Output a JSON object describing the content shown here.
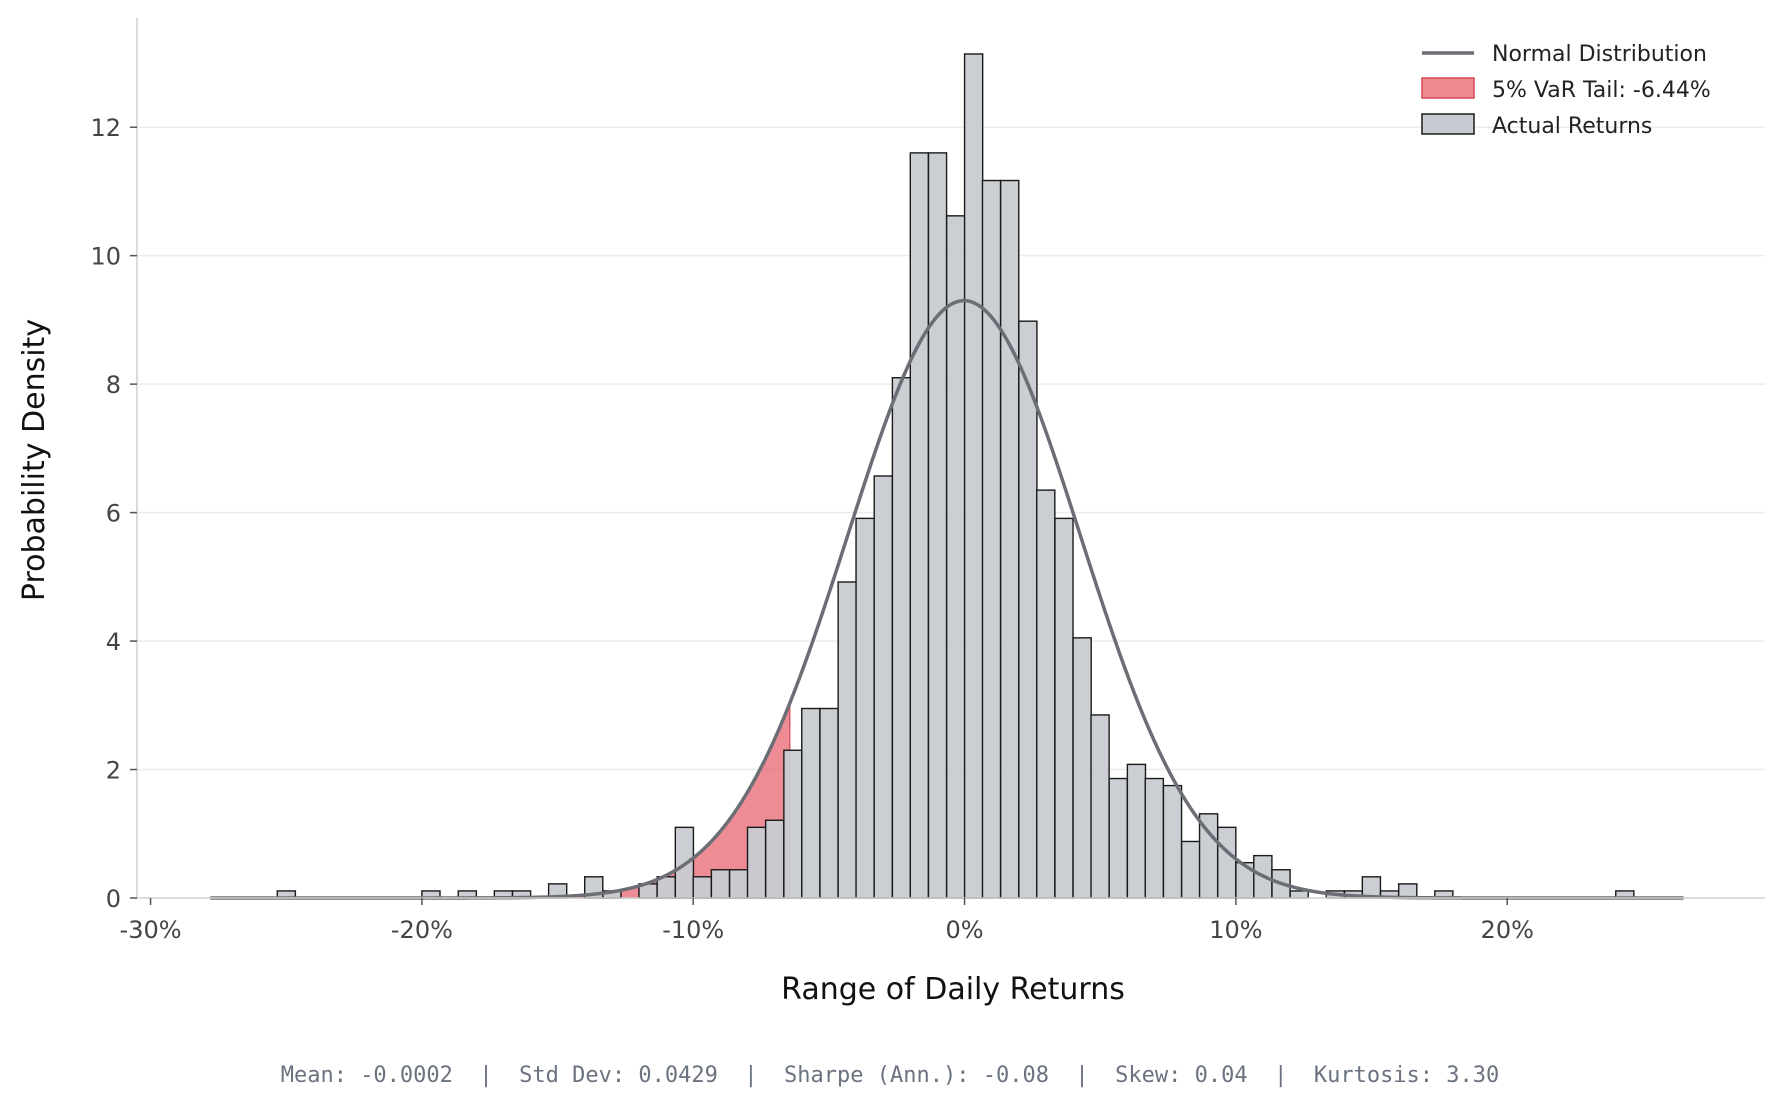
{
  "chart_data": {
    "type": "bar",
    "title": "",
    "xlabel": "Range of Daily Returns",
    "ylabel": "Probability Density",
    "xlim": [
      -0.305,
      0.295
    ],
    "ylim": [
      0,
      13.7
    ],
    "x_ticks": [
      {
        "value": -0.3,
        "label": "-30%"
      },
      {
        "value": -0.2,
        "label": "-20%"
      },
      {
        "value": -0.1,
        "label": "-10%"
      },
      {
        "value": 0.0,
        "label": "0%"
      },
      {
        "value": 0.1,
        "label": "10%"
      },
      {
        "value": 0.2,
        "label": "20%"
      }
    ],
    "y_ticks": [
      {
        "value": 0,
        "label": "0"
      },
      {
        "value": 2,
        "label": "2"
      },
      {
        "value": 4,
        "label": "4"
      },
      {
        "value": 6,
        "label": "6"
      },
      {
        "value": 8,
        "label": "8"
      },
      {
        "value": 10,
        "label": "10"
      },
      {
        "value": 12,
        "label": "12"
      }
    ],
    "grid": "horizontal",
    "legend_position": "top-right",
    "histogram": {
      "name": "Actual Returns",
      "color": "#c8ccd2",
      "edge_color": "#1a1a1a",
      "bin_width": 0.00667,
      "bins": [
        {
          "x0": -0.2533,
          "density": 0.11
        },
        {
          "x0": -0.2,
          "density": 0.11
        },
        {
          "x0": -0.1866,
          "density": 0.11
        },
        {
          "x0": -0.1733,
          "density": 0.11
        },
        {
          "x0": -0.1666,
          "density": 0.11
        },
        {
          "x0": -0.1533,
          "density": 0.22
        },
        {
          "x0": -0.14,
          "density": 0.33
        },
        {
          "x0": -0.1333,
          "density": 0.11
        },
        {
          "x0": -0.12,
          "density": 0.22
        },
        {
          "x0": -0.1133,
          "density": 0.33
        },
        {
          "x0": -0.1066,
          "density": 1.1
        },
        {
          "x0": -0.1,
          "density": 0.33
        },
        {
          "x0": -0.0933,
          "density": 0.44
        },
        {
          "x0": -0.0866,
          "density": 0.44
        },
        {
          "x0": -0.08,
          "density": 1.1
        },
        {
          "x0": -0.0733,
          "density": 1.21
        },
        {
          "x0": -0.0666,
          "density": 2.3
        },
        {
          "x0": -0.06,
          "density": 2.95
        },
        {
          "x0": -0.0533,
          "density": 2.95
        },
        {
          "x0": -0.0466,
          "density": 4.92
        },
        {
          "x0": -0.04,
          "density": 5.91
        },
        {
          "x0": -0.0333,
          "density": 6.57
        },
        {
          "x0": -0.0266,
          "density": 8.1
        },
        {
          "x0": -0.02,
          "density": 11.6
        },
        {
          "x0": -0.0133,
          "density": 11.6
        },
        {
          "x0": -0.0066,
          "density": 10.62
        },
        {
          "x0": 0.0,
          "density": 13.14
        },
        {
          "x0": 0.0066,
          "density": 11.17
        },
        {
          "x0": 0.0133,
          "density": 11.17
        },
        {
          "x0": 0.02,
          "density": 8.98
        },
        {
          "x0": 0.0266,
          "density": 6.35
        },
        {
          "x0": 0.0333,
          "density": 5.91
        },
        {
          "x0": 0.04,
          "density": 4.05
        },
        {
          "x0": 0.0466,
          "density": 2.85
        },
        {
          "x0": 0.0533,
          "density": 1.86
        },
        {
          "x0": 0.06,
          "density": 2.08
        },
        {
          "x0": 0.0666,
          "density": 1.86
        },
        {
          "x0": 0.0733,
          "density": 1.75
        },
        {
          "x0": 0.08,
          "density": 0.88
        },
        {
          "x0": 0.0866,
          "density": 1.31
        },
        {
          "x0": 0.0933,
          "density": 1.1
        },
        {
          "x0": 0.1,
          "density": 0.55
        },
        {
          "x0": 0.1066,
          "density": 0.66
        },
        {
          "x0": 0.1133,
          "density": 0.44
        },
        {
          "x0": 0.12,
          "density": 0.11
        },
        {
          "x0": 0.1333,
          "density": 0.11
        },
        {
          "x0": 0.14,
          "density": 0.11
        },
        {
          "x0": 0.1466,
          "density": 0.33
        },
        {
          "x0": 0.1533,
          "density": 0.11
        },
        {
          "x0": 0.16,
          "density": 0.22
        },
        {
          "x0": 0.1733,
          "density": 0.11
        },
        {
          "x0": 0.24,
          "density": 0.11
        }
      ]
    },
    "normal_distribution": {
      "name": "Normal Distribution",
      "color": "#6b6e75",
      "mean": -0.0002,
      "std": 0.0429,
      "x_range": [
        -0.278,
        0.2655
      ]
    },
    "var_tail": {
      "name": "5% VaR Tail: -6.44%",
      "color": "#e8606c",
      "threshold": -0.0644
    },
    "legend": [
      {
        "kind": "line",
        "label": "Normal Distribution",
        "color": "#6b6e75"
      },
      {
        "kind": "patch",
        "label": "5% VaR Tail: -6.44%",
        "color": "#f08a91",
        "edge": "#d84a57"
      },
      {
        "kind": "patch",
        "label": "Actual Returns",
        "color": "#c8ccd2",
        "edge": "#1a1a1a"
      }
    ],
    "stats_text": "Mean: -0.0002  |  Std Dev: 0.0429  |  Sharpe (Ann.): -0.08  |  Skew: 0.04  |  Kurtosis: 3.30"
  }
}
